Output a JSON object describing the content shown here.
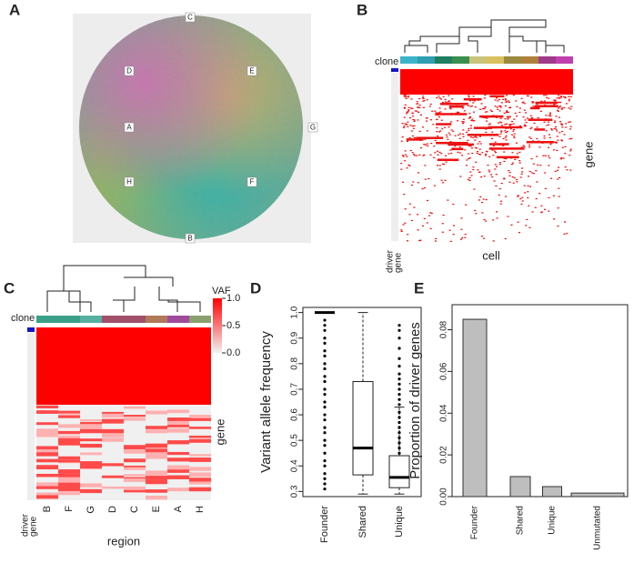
{
  "panel_labels": [
    "A",
    "B",
    "C",
    "D",
    "E"
  ],
  "map": {
    "labels": [
      "C",
      "D",
      "E",
      "A",
      "G",
      "H",
      "F",
      "B"
    ]
  },
  "heatmap_b": {
    "clone_label": "clone",
    "y_label": "gene",
    "x_label": "cell",
    "driver_label": [
      "driver",
      "gene"
    ]
  },
  "heatmap_c": {
    "clone_label": "clone",
    "legend_title": "VAF",
    "legend_ticks": [
      {
        "value": 1,
        "label": "1.0"
      },
      {
        "value": 0.5,
        "label": "0.5"
      },
      {
        "value": 0,
        "label": "0.0"
      }
    ],
    "regions": [
      "B",
      "F",
      "G",
      "D",
      "C",
      "E",
      "A",
      "H"
    ],
    "x_label": "region",
    "y_label": "gene",
    "driver_label": [
      "driver",
      "gene"
    ]
  },
  "chart_data": [
    {
      "type": "box",
      "y_label": "Variant allele frequency",
      "categories": [
        "Founder",
        "Shared",
        "Unique"
      ],
      "ylim": [
        0.28,
        1.02
      ],
      "yticks": [
        0.3,
        0.4,
        0.5,
        0.6,
        0.7,
        0.8,
        0.9,
        {
          "value": 1,
          "label": "1.0"
        }
      ],
      "boxes": [
        {
          "whisker_low": 1,
          "q1": 1,
          "median": 1,
          "q3": 1,
          "whisker_high": 1,
          "outliers": [
            0.31,
            0.33,
            0.35,
            0.37,
            0.4,
            0.42,
            0.45,
            0.48,
            0.5,
            0.53,
            0.55,
            0.58,
            0.6,
            0.63,
            0.65,
            0.68,
            0.7,
            0.73,
            0.75,
            0.78,
            0.8,
            0.83,
            0.85,
            0.88,
            0.9,
            0.93,
            0.95,
            0.97
          ]
        },
        {
          "whisker_low": 0.29,
          "q1": 0.365,
          "median": 0.47,
          "q3": 0.73,
          "whisker_high": 1,
          "outliers": []
        },
        {
          "whisker_low": 0.29,
          "q1": 0.315,
          "median": 0.355,
          "q3": 0.44,
          "whisker_high": 0.63,
          "outliers": [
            0.45,
            0.47,
            0.49,
            0.51,
            0.53,
            0.55,
            0.57,
            0.59,
            0.61,
            0.64,
            0.66,
            0.68,
            0.7,
            0.72,
            0.74,
            0.76,
            0.79,
            0.82,
            0.86,
            0.9,
            0.93,
            0.95
          ]
        }
      ]
    },
    {
      "type": "bar",
      "y_label": "Proportion of driver genes",
      "categories": [
        "Founder",
        "Shared",
        "Unique",
        "Unmutated"
      ],
      "values": [
        0.085,
        0.0096,
        0.0048,
        0.0017
      ],
      "color": "#bebebe",
      "ylim": [
        0,
        0.092
      ],
      "yticks": [
        {
          "value": 0,
          "label": "0.00"
        },
        {
          "value": 0.02,
          "label": "0.02"
        },
        {
          "value": 0.04,
          "label": "0.04"
        },
        {
          "value": 0.06,
          "label": "0.06"
        },
        {
          "value": 0.08,
          "label": "0.08"
        }
      ]
    }
  ]
}
